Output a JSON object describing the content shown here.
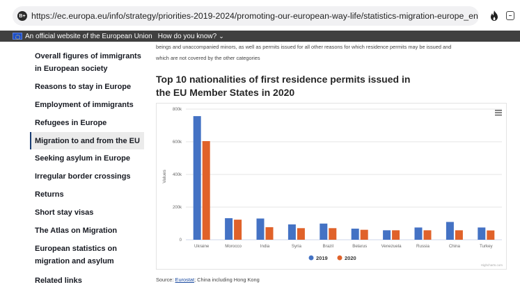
{
  "browser": {
    "url": "https://ec.europa.eu/info/strategy/priorities-2019-2024/promoting-our-european-way-life/statistics-migration-europe_en",
    "site_icon_label": "B+"
  },
  "eu_banner": {
    "official_text": "An official website of the European Union",
    "how_text": "How do you know?",
    "chevron": "⌄"
  },
  "sidebar": {
    "items": [
      {
        "label": "Overall figures of immigrants in European society",
        "active": false
      },
      {
        "label": "Reasons to stay in Europe",
        "active": false
      },
      {
        "label": "Employment of immigrants",
        "active": false
      },
      {
        "label": "Refugees in Europe",
        "active": false
      },
      {
        "label": "Migration to and from the EU",
        "active": true
      },
      {
        "label": "Seeking asylum in Europe",
        "active": false
      },
      {
        "label": "Irregular border crossings",
        "active": false
      },
      {
        "label": "Returns",
        "active": false
      },
      {
        "label": "Short stay visas",
        "active": false
      },
      {
        "label": "The Atlas on Migration",
        "active": false
      },
      {
        "label": "European statistics on migration and asylum",
        "active": false
      },
      {
        "label": "Related links",
        "active": false
      }
    ]
  },
  "main": {
    "intro_line1": "beings and unaccompanied minors, as well as permits issued for all other reasons for which residence permits may be issued and",
    "intro_line2": "which are not covered by the other categories",
    "title_line1": "Top 10 nationalities of first residence permits issued in",
    "title_line2": "the EU Member States in 2020",
    "source_prefix": "Source: ",
    "source_link": "Eurostat",
    "source_suffix": "; China including Hong Kong"
  },
  "colors": {
    "series_2019": "#4472c4",
    "series_2020": "#e0622a"
  },
  "chart_data": {
    "type": "bar",
    "title": "Top 10 nationalities of first residence permits issued in the EU Member States in 2020",
    "xlabel": "",
    "ylabel": "Values",
    "categories": [
      "Ukraine",
      "Morocco",
      "India",
      "Syria",
      "Brazil",
      "Belarus",
      "Venezuela",
      "Russia",
      "China",
      "Turkey"
    ],
    "series": [
      {
        "name": "2019",
        "values": [
          757000,
          132000,
          130000,
          94000,
          99000,
          68000,
          58000,
          75000,
          109000,
          75000
        ]
      },
      {
        "name": "2020",
        "values": [
          604000,
          123000,
          77000,
          71000,
          71000,
          61000,
          58000,
          58000,
          58000,
          57000
        ]
      }
    ],
    "ylim": [
      0,
      800000
    ],
    "yticks": [
      0,
      200000,
      400000,
      600000,
      800000
    ],
    "ytick_labels": [
      "0",
      "200k",
      "400k",
      "600k",
      "800k"
    ],
    "grid": true,
    "legend": "bottom-center",
    "credits": "Highcharts.com",
    "menu_icon": "hamburger-menu"
  }
}
